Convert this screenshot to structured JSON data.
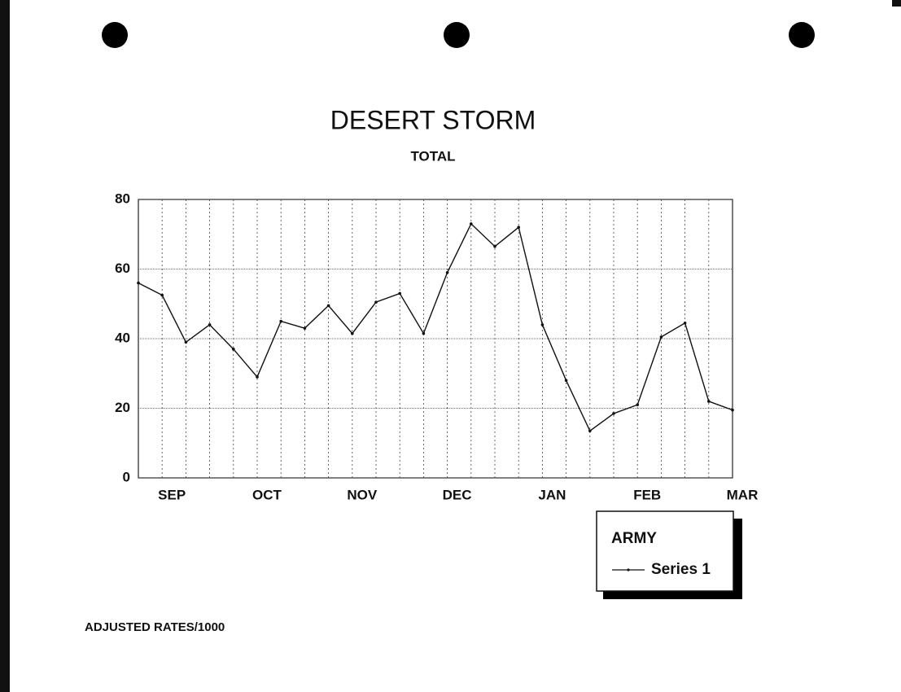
{
  "chart_data": {
    "type": "line",
    "title": "DESERT STORM",
    "subtitle": "TOTAL",
    "note": "ADJUSTED RATES/1000",
    "legend_title": "ARMY",
    "categories": [
      null,
      "SEP",
      null,
      null,
      null,
      "OCT",
      null,
      null,
      null,
      "NOV",
      null,
      null,
      null,
      "DEC",
      null,
      null,
      null,
      "JAN",
      null,
      null,
      null,
      "FEB",
      null,
      null,
      null,
      "MAR"
    ],
    "series": [
      {
        "name": "Series 1",
        "color": "#111111",
        "values": [
          56,
          52.5,
          39,
          44,
          37,
          29,
          45,
          43,
          49.5,
          41.5,
          50.5,
          53,
          41.5,
          59,
          73,
          66.5,
          72,
          44,
          28,
          13.5,
          18.5,
          21,
          40.5,
          44.5,
          22,
          19.5
        ]
      }
    ],
    "ylim": [
      0,
      80
    ],
    "yticks": [
      0,
      20,
      40,
      60,
      80
    ],
    "grid": true
  }
}
